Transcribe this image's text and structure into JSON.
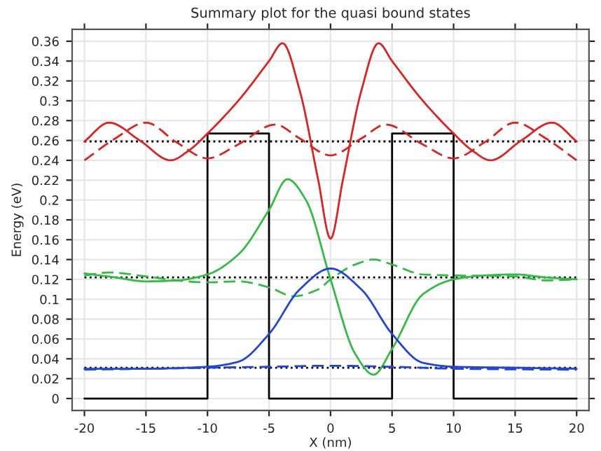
{
  "chart_data": {
    "type": "line",
    "title": "Summary plot for the quasi bound states",
    "xlabel": "X (nm)",
    "ylabel": "Energy (eV)",
    "xlim": [
      -21,
      21
    ],
    "ylim": [
      -0.012,
      0.372
    ],
    "xticks": [
      -20,
      -15,
      -10,
      -5,
      0,
      5,
      10,
      15,
      20
    ],
    "yticks": [
      0,
      0.02,
      0.04,
      0.06,
      0.08,
      0.1,
      0.12,
      0.14,
      0.16,
      0.18,
      0.2,
      0.22,
      0.24,
      0.26,
      0.28,
      0.3,
      0.32,
      0.34,
      0.36
    ],
    "grid": true,
    "legend": false,
    "marker": "none",
    "series": [
      {
        "color": "#000000",
        "line_style": "dotted",
        "x": [
          -20,
          20
        ],
        "values": [
          0.259,
          0.259
        ]
      },
      {
        "color": "#000000",
        "line_style": "dotted",
        "x": [
          -20,
          20
        ],
        "values": [
          0.122,
          0.122
        ]
      },
      {
        "color": "#000000",
        "line_style": "dotted",
        "x": [
          -20,
          20
        ],
        "values": [
          0.031,
          0.031
        ]
      },
      {
        "color": "#000000",
        "line_style": "solid",
        "x": [
          -20,
          -10,
          -10,
          -5,
          -5,
          5,
          5,
          10,
          10,
          20
        ],
        "values": [
          0,
          0,
          0.267,
          0.267,
          0,
          0,
          0.267,
          0.267,
          0,
          0
        ]
      },
      {
        "color": "#dd2222",
        "line_style": "solid",
        "x": [
          -20,
          -18,
          -15.5,
          -13,
          -11.5,
          -10,
          -7.5,
          -5,
          -3.9,
          -2.5,
          -1,
          0,
          1,
          2.5,
          3.9,
          5,
          7.5,
          10,
          11.5,
          13,
          15.5,
          18,
          20
        ],
        "values": [
          0.259,
          0.278,
          0.26,
          0.24,
          0.25,
          0.267,
          0.3,
          0.34,
          0.358,
          0.31,
          0.22,
          0.161,
          0.22,
          0.31,
          0.358,
          0.34,
          0.3,
          0.267,
          0.25,
          0.24,
          0.26,
          0.278,
          0.259
        ]
      },
      {
        "color": "#dd2222",
        "line_style": "dashed",
        "x": [
          -20,
          -17.5,
          -15,
          -12.5,
          -10,
          -7.5,
          -4.5,
          -2.5,
          0,
          2.5,
          4.5,
          7.5,
          10,
          12.5,
          15,
          17.5,
          20
        ],
        "values": [
          0.24,
          0.262,
          0.278,
          0.258,
          0.242,
          0.256,
          0.276,
          0.262,
          0.245,
          0.262,
          0.276,
          0.256,
          0.242,
          0.258,
          0.278,
          0.262,
          0.24
        ]
      },
      {
        "color": "#33bb44",
        "line_style": "solid",
        "x": [
          -20,
          -17.5,
          -15,
          -12.5,
          -10,
          -7.5,
          -5,
          -3.5,
          -2,
          0,
          2,
          3.5,
          5,
          7.5,
          10,
          12.5,
          15,
          17.5,
          20
        ],
        "values": [
          0.126,
          0.122,
          0.118,
          0.119,
          0.125,
          0.145,
          0.19,
          0.221,
          0.2,
          0.12,
          0.045,
          0.024,
          0.05,
          0.105,
          0.12,
          0.124,
          0.125,
          0.122,
          0.12
        ]
      },
      {
        "color": "#33bb44",
        "line_style": "dashed",
        "x": [
          -20,
          -18,
          -15,
          -12.5,
          -10,
          -7.5,
          -5,
          -3,
          -1,
          0,
          2,
          3.5,
          5,
          7.5,
          10,
          15,
          17.5,
          20
        ],
        "values": [
          0.124,
          0.127,
          0.123,
          0.119,
          0.117,
          0.118,
          0.112,
          0.103,
          0.11,
          0.12,
          0.135,
          0.14,
          0.135,
          0.125,
          0.124,
          0.123,
          0.119,
          0.12
        ]
      },
      {
        "color": "#2244dd",
        "line_style": "solid",
        "x": [
          -20,
          -15,
          -10,
          -7.5,
          -5,
          -2.5,
          0,
          2.5,
          5,
          7.5,
          10,
          15,
          20
        ],
        "values": [
          0.03,
          0.03,
          0.032,
          0.037,
          0.065,
          0.11,
          0.131,
          0.11,
          0.065,
          0.036,
          0.032,
          0.031,
          0.03
        ]
      },
      {
        "color": "#2244dd",
        "line_style": "dashed",
        "x": [
          -20,
          -10,
          -5,
          0,
          5,
          10,
          20
        ],
        "values": [
          0.029,
          0.031,
          0.032,
          0.033,
          0.032,
          0.03,
          0.029
        ]
      }
    ]
  }
}
